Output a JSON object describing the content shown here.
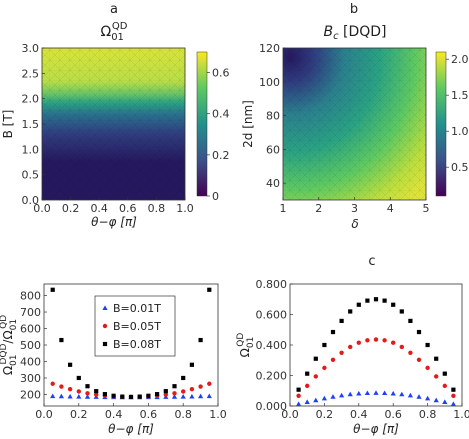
{
  "colors": {
    "colormap": [
      "#440154",
      "#3b528b",
      "#21918c",
      "#5ec962",
      "#fde725"
    ],
    "dark": "#26185f",
    "series_blue": "#1f3fff",
    "series_red": "#e41a1c",
    "series_black": "#000000"
  },
  "chart_data": [
    {
      "panel": "a",
      "type": "heatmap",
      "title": "Ω01QD",
      "xlabel": "θ−φ [π]",
      "ylabel": "B [T]",
      "xlim": [
        0,
        1
      ],
      "ylim": [
        0,
        3
      ],
      "xticks": [
        "0.0",
        "0.2",
        "0.4",
        "0.6",
        "0.8",
        "1.0"
      ],
      "yticks": [
        "0.0",
        "0.5",
        "1.0",
        "1.5",
        "2.0",
        "2.5",
        "3.0"
      ],
      "colorbar": {
        "range": [
          0,
          0.7
        ],
        "ticks": [
          "0",
          "0.2",
          "0.4",
          "0.6"
        ]
      }
    },
    {
      "panel": "b",
      "type": "heatmap",
      "title": "Bc [DQD]",
      "xlabel": "δ",
      "ylabel": "2d [nm]",
      "xlim": [
        1,
        5
      ],
      "ylim": [
        30,
        120
      ],
      "xticks": [
        "1",
        "2",
        "3",
        "4",
        "5"
      ],
      "yticks": [
        "40",
        "60",
        "80",
        "100",
        "120"
      ],
      "colorbar": {
        "range": [
          0.1,
          2.1
        ],
        "ticks": [
          "0.5",
          "1.0",
          "1.5",
          "2.0"
        ]
      }
    },
    {
      "panel": "left",
      "type": "scatter",
      "xlabel": "θ−φ [π]",
      "ylabel": "Ω01DQD/Ω01QD",
      "xlim": [
        0,
        1
      ],
      "ylim": [
        130,
        870
      ],
      "xticks": [
        "0.0",
        "0.2",
        "0.4",
        "0.6",
        "0.8",
        "1.0"
      ],
      "yticks": [
        "200",
        "300",
        "400",
        "500",
        "600",
        "700",
        "800"
      ],
      "x": [
        0.05,
        0.1,
        0.15,
        0.2,
        0.25,
        0.3,
        0.35,
        0.4,
        0.45,
        0.5,
        0.55,
        0.6,
        0.65,
        0.7,
        0.75,
        0.8,
        0.85,
        0.9,
        0.95
      ],
      "series": [
        {
          "name": "B=0.01T",
          "marker": "triangle",
          "values": [
            190,
            189,
            188,
            187,
            186,
            185,
            184,
            184,
            183,
            183,
            183,
            184,
            184,
            185,
            186,
            187,
            188,
            189,
            190
          ]
        },
        {
          "name": "B=0.05T",
          "marker": "circle",
          "values": [
            265,
            248,
            232,
            218,
            207,
            199,
            193,
            189,
            186,
            185,
            186,
            189,
            193,
            199,
            207,
            218,
            232,
            248,
            265
          ]
        },
        {
          "name": "B=0.08T",
          "marker": "square",
          "values": [
            835,
            530,
            380,
            300,
            250,
            220,
            202,
            192,
            187,
            185,
            187,
            192,
            202,
            220,
            250,
            300,
            380,
            530,
            835
          ]
        }
      ]
    },
    {
      "panel": "c",
      "type": "scatter",
      "xlabel": "θ−φ [π]",
      "ylabel": "Ω01QD",
      "xlim": [
        0,
        1
      ],
      "ylim": [
        0,
        0.8
      ],
      "xticks": [
        "0.0",
        "0.2",
        "0.4",
        "0.6",
        "0.8",
        "1.0"
      ],
      "yticks": [
        "0.000",
        "0.200",
        "0.400",
        "0.600",
        "0.800"
      ],
      "x": [
        0.05,
        0.1,
        0.15,
        0.2,
        0.25,
        0.3,
        0.35,
        0.4,
        0.45,
        0.5,
        0.55,
        0.6,
        0.65,
        0.7,
        0.75,
        0.8,
        0.85,
        0.9,
        0.95
      ],
      "series": [
        {
          "name": "B=0.01T",
          "marker": "triangle",
          "values": [
            0.013,
            0.026,
            0.038,
            0.05,
            0.061,
            0.07,
            0.077,
            0.082,
            0.085,
            0.086,
            0.085,
            0.082,
            0.077,
            0.07,
            0.061,
            0.05,
            0.038,
            0.026,
            0.013
          ]
        },
        {
          "name": "B=0.05T",
          "marker": "circle",
          "values": [
            0.067,
            0.132,
            0.194,
            0.25,
            0.303,
            0.349,
            0.387,
            0.415,
            0.431,
            0.436,
            0.431,
            0.415,
            0.387,
            0.349,
            0.303,
            0.25,
            0.194,
            0.132,
            0.067
          ]
        },
        {
          "name": "B=0.08T",
          "marker": "square",
          "values": [
            0.107,
            0.212,
            0.31,
            0.4,
            0.485,
            0.558,
            0.62,
            0.664,
            0.691,
            0.7,
            0.691,
            0.664,
            0.62,
            0.558,
            0.485,
            0.4,
            0.31,
            0.212,
            0.107
          ]
        }
      ]
    }
  ],
  "panel_letters": {
    "a": "a",
    "b": "b",
    "c": "c"
  }
}
